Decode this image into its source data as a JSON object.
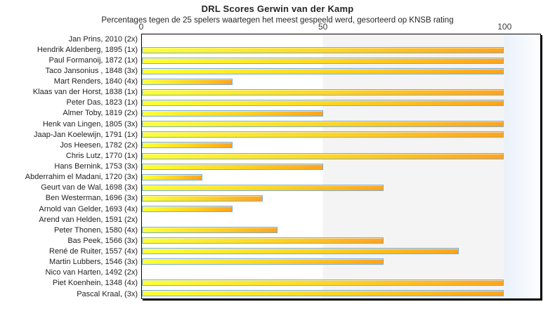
{
  "chart_data": {
    "type": "bar",
    "orientation": "horizontal",
    "title": "DRL Scores Gerwin van der Kamp",
    "subtitle": "Percentages tegen de 25 spelers waartegen het meest gespeeld werd, gesorteerd op KNSB rating",
    "categories": [
      "Jan Prins, 2010 (2x)",
      "Hendrik Aldenberg, 1895 (1x)",
      "Paul Formanoij, 1872 (1x)",
      "Taco Jansonius , 1848 (3x)",
      "Mart Renders, 1840 (4x)",
      "Klaas van der Horst, 1838 (1x)",
      "Peter Das, 1823 (1x)",
      "Almer Toby, 1819 (2x)",
      "Henk van Lingen, 1805 (3x)",
      "Jaap-Jan Koelewijn, 1791 (1x)",
      "Jos Heesen, 1782 (2x)",
      "Chris Lutz, 1770 (1x)",
      "Hans Bernink, 1753 (3x)",
      "Abderrahim el Madani, 1720 (3x)",
      "Geurt van de Wal, 1698 (3x)",
      "Ben Westerman, 1696 (3x)",
      "Arnold van Gelder, 1693 (4x)",
      "Arend van Helden, 1591 (2x)",
      "Peter Thonen, 1580 (4x)",
      "Bas Peek, 1566 (3x)",
      "René de Ruiter, 1557 (4x)",
      "Martin Lubbers, 1546 (3x)",
      "Nico van Harten, 1492 (2x)",
      "Piet Koenhein, 1348 (4x)",
      "Pascal Kraal,  (3x)"
    ],
    "values": [
      0,
      100,
      100,
      100,
      25,
      100,
      100,
      50,
      100,
      100,
      25,
      100,
      50,
      16.7,
      66.7,
      33.3,
      25,
      0,
      37.5,
      66.7,
      87.5,
      66.7,
      0,
      100,
      100
    ],
    "xlabel": "",
    "ylabel": "",
    "xlim": [
      0,
      110
    ],
    "x_ticks": [
      0,
      50,
      100
    ],
    "legend": "none",
    "grid": "background bands at 0-50 white, 50-100 gray, beyond 100 light blue",
    "colors": {
      "bar_gradient_start": "#fdff35",
      "bar_gradient_end": "#ffa41e",
      "bar_border": "#76acd9",
      "band_50_100": "#f4f4f4",
      "band_over_100": "#e9f1f9",
      "plot_border": "#000000",
      "text": "#262626"
    }
  }
}
